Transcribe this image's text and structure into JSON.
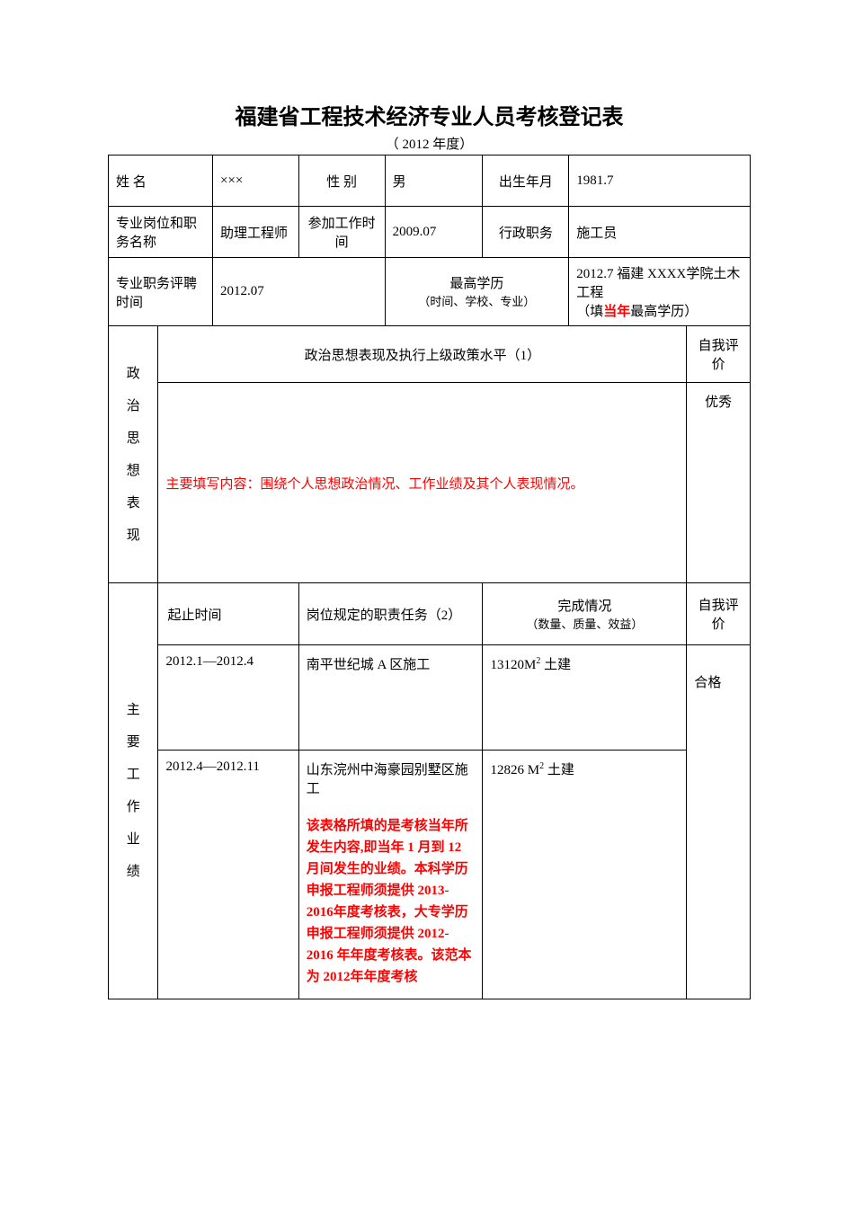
{
  "title": "福建省工程技术经济专业人员考核登记表",
  "subtitle": "（ 2012 年度）",
  "row1": {
    "name_label": "姓 名",
    "name_value": "×××",
    "gender_label": "性   别",
    "gender_value": "男",
    "dob_label": "出生年月",
    "dob_value": "1981.7"
  },
  "row2": {
    "pos_label": "专业岗位和职务名称",
    "pos_value": "助理工程师",
    "worktime_label": "参加工作时   间",
    "worktime_value": "2009.07",
    "adminpos_label": "行政职务",
    "adminpos_value": "施工员"
  },
  "row3": {
    "hiretime_label": "专业职务评聘时间",
    "hiretime_value": "2012.07",
    "edu_label_line1": "最高学历",
    "edu_label_line2": "（时间、学校、专业）",
    "edu_value_line1": "2012.7 福建 XXXX学院土木工程",
    "edu_value_line2": "（填",
    "edu_value_red": "当年",
    "edu_value_line2_end": "最高学历）"
  },
  "section1": {
    "vertical_label_chars": [
      "政",
      "治",
      "思",
      "想",
      "表",
      "现"
    ],
    "header": "政治思想表现及执行上级政策水平（1）",
    "self_eval_label": "自我评价",
    "content": "主要填写内容：围绕个人思想政治情况、工作业绩及其个人表现情况。",
    "self_eval_value": "优秀"
  },
  "section2": {
    "vertical_label_chars": [
      "主",
      "要",
      "工",
      "作",
      "业",
      "绩"
    ],
    "col_time": "起止时间",
    "col_duty": "岗位规定的职责任务（2）",
    "col_result_line1": "完成情况",
    "col_result_line2": "（数量、质量、效益）",
    "col_selfeval": "自我评价",
    "rows": [
      {
        "time": "2012.1—2012.4",
        "duty": "南平世纪城 A 区施工",
        "result_prefix": "13120M",
        "result_sup": "2",
        "result_suffix": " 土建"
      },
      {
        "time": "2012.4—2012.11",
        "duty_line1": "山东浣州中海豪园别墅区施工",
        "note_l1": "该表格所填的是考核当年所发生内容,即当年 1 月到 12 月间发生的业绩。本科学历申报工程师须提供 2013-2016年度考核表，大专学历申报工程师须提供 2012-2016 年年度考核表。该范本为 2012年年度考核",
        "result_prefix": "12826 M",
        "result_sup": "2",
        "result_suffix": " 土建"
      }
    ],
    "self_eval_value": "合格"
  }
}
